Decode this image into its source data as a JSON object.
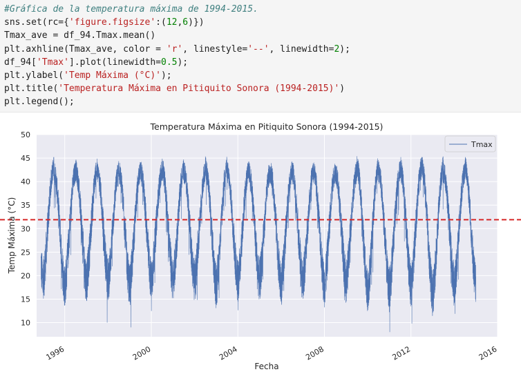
{
  "code_cell": {
    "lines": [
      [
        {
          "t": "#Gráfica de la temperatura máxima de 1994-2015.",
          "c": "comment"
        }
      ],
      [
        {
          "t": "sns.set(rc={",
          "c": ""
        },
        {
          "t": "'figure.figsize'",
          "c": "str"
        },
        {
          "t": ":(",
          "c": ""
        },
        {
          "t": "12",
          "c": "num"
        },
        {
          "t": ",",
          "c": ""
        },
        {
          "t": "6",
          "c": "num"
        },
        {
          "t": ")})",
          "c": ""
        }
      ],
      [
        {
          "t": "Tmax_ave = df_94.Tmax.mean()",
          "c": ""
        }
      ],
      [
        {
          "t": "plt.axhline(Tmax_ave, color = ",
          "c": ""
        },
        {
          "t": "'r'",
          "c": "str"
        },
        {
          "t": ", linestyle=",
          "c": ""
        },
        {
          "t": "'--'",
          "c": "str"
        },
        {
          "t": ", linewidth=",
          "c": ""
        },
        {
          "t": "2",
          "c": "num"
        },
        {
          "t": ");",
          "c": ""
        }
      ],
      [
        {
          "t": "df_94[",
          "c": ""
        },
        {
          "t": "'Tmax'",
          "c": "str"
        },
        {
          "t": "].plot(linewidth=",
          "c": ""
        },
        {
          "t": "0.5",
          "c": "num"
        },
        {
          "t": ");",
          "c": ""
        }
      ],
      [
        {
          "t": "plt.ylabel(",
          "c": ""
        },
        {
          "t": "'Temp Máxima (°C)'",
          "c": "str"
        },
        {
          "t": ");",
          "c": ""
        }
      ],
      [
        {
          "t": "plt.title(",
          "c": ""
        },
        {
          "t": "'Temperatura Máxima en Pitiquito Sonora (1994-2015)'",
          "c": "str"
        },
        {
          "t": ")",
          "c": ""
        }
      ],
      [
        {
          "t": "plt.legend();",
          "c": ""
        }
      ]
    ]
  },
  "chart_data": {
    "type": "line",
    "title": "Temperatura Máxima en Pitiquito Sonora (1994-2015)",
    "xlabel": "Fecha",
    "ylabel": "Temp Máxima (°C)",
    "xlim": [
      1994.7,
      2016.0
    ],
    "ylim": [
      7,
      50
    ],
    "xticks": [
      1996,
      2000,
      2004,
      2008,
      2012,
      2016
    ],
    "yticks": [
      10,
      15,
      20,
      25,
      30,
      35,
      40,
      45,
      50
    ],
    "grid": true,
    "legend_placement": "top-right",
    "series": [
      {
        "name": "Tmax",
        "color": "#4c72b0",
        "x_range": [
          1994.9,
          2015.0
        ],
        "summer_peak_year_fraction": 0.5,
        "winter_trough_year_fraction": 0.0,
        "yearly_mean_peak": [
          43,
          42,
          42.5,
          42,
          42,
          42,
          42.5,
          42,
          43,
          42,
          42,
          42,
          42,
          42,
          42,
          43,
          42,
          43,
          43,
          42,
          43
        ],
        "yearly_mean_trough": [
          19,
          18,
          19,
          19,
          18,
          19,
          19,
          19,
          18,
          19,
          19,
          18,
          19,
          18,
          19,
          17,
          17,
          18,
          16,
          18,
          18
        ],
        "noise_amplitude": 4,
        "observed_max": 48,
        "observed_min": 8
      }
    ],
    "reference_line": {
      "value": 31.9,
      "color": "#d62728",
      "style": "dashed"
    },
    "colors": {
      "axes_bg": "#eaeaf2",
      "grid": "#ffffff",
      "text": "#262626"
    }
  }
}
